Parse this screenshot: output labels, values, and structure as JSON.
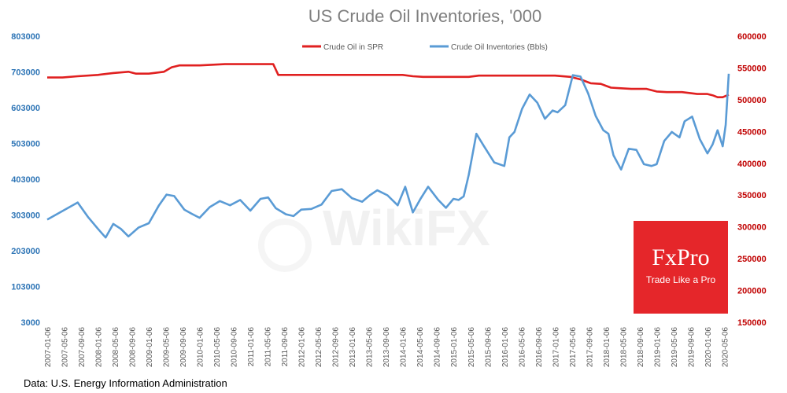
{
  "source_note": "Data: U.S. Energy Information Administration",
  "logo": {
    "name": "FxPro",
    "tagline": "Trade Like a Pro"
  },
  "watermark": "WikiFX",
  "chart_data": {
    "type": "line",
    "title": "US Crude Oil Inventories, '000",
    "legend_position": "top-center",
    "grid": false,
    "x_ticks": [
      "2007-01-06",
      "2007-05-06",
      "2007-09-06",
      "2008-01-06",
      "2008-05-06",
      "2008-09-06",
      "2009-01-06",
      "2009-05-06",
      "2009-09-06",
      "2010-01-06",
      "2010-05-06",
      "2010-09-06",
      "2011-01-06",
      "2011-05-06",
      "2011-09-06",
      "2012-01-06",
      "2012-05-06",
      "2012-09-06",
      "2013-01-06",
      "2013-05-06",
      "2013-09-06",
      "2014-01-06",
      "2014-05-06",
      "2014-09-06",
      "2015-01-06",
      "2015-05-06",
      "2015-09-06",
      "2016-01-06",
      "2016-05-06",
      "2016-09-06",
      "2017-01-06",
      "2017-05-06",
      "2017-09-06",
      "2018-01-06",
      "2018-05-06",
      "2018-09-06",
      "2019-01-06",
      "2019-05-06",
      "2019-09-06",
      "2020-01-06",
      "2020-05-06"
    ],
    "y_left": {
      "ticks": [
        "803000",
        "703000",
        "603000",
        "503000",
        "403000",
        "303000",
        "203000",
        "103000",
        "3000"
      ],
      "ylim": [
        3000,
        803000
      ],
      "color": "#2e75b6"
    },
    "y_right": {
      "ticks": [
        "600000",
        "550000",
        "500000",
        "450000",
        "400000",
        "350000",
        "300000",
        "250000",
        "200000",
        "150000"
      ],
      "ylim": [
        150000,
        600000
      ],
      "color": "#c00000"
    },
    "series": [
      {
        "name": "Crude Oil in SPR",
        "axis": "right",
        "color": "#e02020",
        "x": [
          2007.0,
          2007.3,
          2007.6,
          2008.0,
          2008.3,
          2008.6,
          2008.75,
          2009.0,
          2009.3,
          2009.45,
          2009.6,
          2010.0,
          2010.5,
          2011.0,
          2011.3,
          2011.45,
          2011.55,
          2012.0,
          2012.5,
          2013.0,
          2013.5,
          2014.0,
          2014.2,
          2014.4,
          2015.0,
          2015.3,
          2015.5,
          2016.0,
          2016.5,
          2017.0,
          2017.3,
          2017.5,
          2017.7,
          2017.9,
          2018.0,
          2018.1,
          2018.3,
          2018.5,
          2018.8,
          2019.0,
          2019.2,
          2019.5,
          2019.8,
          2020.0,
          2020.1,
          2020.2,
          2020.3,
          2020.42
        ],
        "values": [
          535,
          535,
          537,
          539,
          542,
          544,
          541,
          541,
          544,
          551,
          554,
          554,
          556,
          556,
          556,
          556,
          539,
          539,
          539,
          539,
          539,
          539,
          537,
          536,
          536,
          536,
          538,
          538,
          538,
          538,
          536,
          532,
          526,
          525,
          522,
          519,
          518,
          517,
          517,
          513,
          512,
          512,
          509,
          509,
          507,
          504,
          504,
          508
        ]
      },
      {
        "name": "Crude Oil Inventories (Bbls)",
        "axis": "left",
        "color": "#5a9bd5",
        "x": [
          2007.0,
          2007.2,
          2007.4,
          2007.6,
          2007.8,
          2008.0,
          2008.15,
          2008.3,
          2008.45,
          2008.6,
          2008.8,
          2009.0,
          2009.2,
          2009.35,
          2009.5,
          2009.7,
          2009.85,
          2010.0,
          2010.2,
          2010.4,
          2010.6,
          2010.8,
          2011.0,
          2011.2,
          2011.35,
          2011.5,
          2011.7,
          2011.85,
          2012.0,
          2012.2,
          2012.4,
          2012.6,
          2012.8,
          2013.0,
          2013.2,
          2013.35,
          2013.5,
          2013.7,
          2013.9,
          2014.05,
          2014.2,
          2014.35,
          2014.5,
          2014.7,
          2014.85,
          2015.0,
          2015.1,
          2015.2,
          2015.3,
          2015.45,
          2015.6,
          2015.8,
          2016.0,
          2016.1,
          2016.2,
          2016.35,
          2016.5,
          2016.65,
          2016.8,
          2016.95,
          2017.05,
          2017.2,
          2017.35,
          2017.5,
          2017.65,
          2017.8,
          2017.95,
          2018.05,
          2018.15,
          2018.3,
          2018.45,
          2018.6,
          2018.75,
          2018.9,
          2019.0,
          2019.15,
          2019.3,
          2019.45,
          2019.55,
          2019.7,
          2019.85,
          2020.0,
          2020.1,
          2020.2,
          2020.3,
          2020.36,
          2020.42
        ],
        "values": [
          290000,
          306000,
          322000,
          338000,
          298000,
          264000,
          240000,
          278000,
          264000,
          243000,
          268000,
          280000,
          330000,
          360000,
          356000,
          318000,
          306000,
          295000,
          325000,
          342000,
          330000,
          345000,
          315000,
          348000,
          352000,
          322000,
          305000,
          300000,
          318000,
          320000,
          332000,
          370000,
          375000,
          350000,
          340000,
          358000,
          372000,
          358000,
          330000,
          382000,
          310000,
          348000,
          382000,
          345000,
          323000,
          348000,
          345000,
          355000,
          415000,
          530000,
          495000,
          450000,
          440000,
          520000,
          535000,
          600000,
          640000,
          617000,
          572000,
          595000,
          590000,
          610000,
          694000,
          690000,
          643000,
          580000,
          540000,
          530000,
          470000,
          430000,
          488000,
          485000,
          445000,
          440000,
          445000,
          510000,
          535000,
          520000,
          565000,
          578000,
          515000,
          475000,
          500000,
          540000,
          495000,
          555000,
          698000
        ]
      }
    ]
  }
}
